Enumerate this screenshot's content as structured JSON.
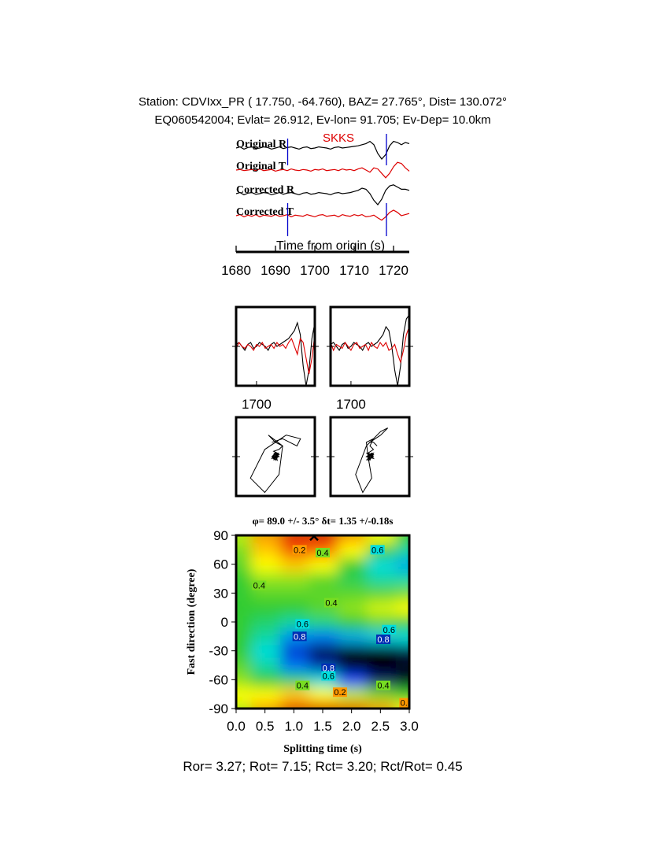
{
  "header": {
    "station": "Station: CDVIxx_PR (  17.750,  -64.760), BAZ=   27.765°, Dist=  130.072°",
    "event": "EQ060542004; Evlat=  26.912, Ev-lon=  91.705; Ev-Dep= 10.0km"
  },
  "chart_data": [
    {
      "type": "line",
      "phase": "SKKS",
      "phase_color": "#dd0000",
      "xlabel": "Time from origin (s)",
      "xlim": [
        1680,
        1724
      ],
      "xticks": [
        1680,
        1690,
        1700,
        1710,
        1720
      ],
      "window": [
        1693.1,
        1718.2
      ],
      "window_color": "#0000cc",
      "x": [
        1680,
        1681,
        1682,
        1683,
        1684,
        1685,
        1686,
        1687,
        1688,
        1689,
        1690,
        1691,
        1692,
        1693,
        1694,
        1695,
        1696,
        1697,
        1698,
        1699,
        1700,
        1701,
        1702,
        1703,
        1704,
        1705,
        1706,
        1707,
        1708,
        1709,
        1710,
        1711,
        1712,
        1713,
        1714,
        1715,
        1716,
        1717,
        1718,
        1719,
        1720,
        1721,
        1722,
        1723,
        1724
      ],
      "ylim": [
        -1,
        1
      ],
      "series": [
        {
          "name": "Original R",
          "color": "#000000",
          "values": [
            0,
            0.1,
            -0.1,
            0.05,
            0.1,
            -0.05,
            0,
            0.1,
            0.05,
            -0.1,
            0,
            0.1,
            -0.05,
            0.05,
            0.1,
            0,
            -0.1,
            0.05,
            0.1,
            -0.05,
            0,
            0.1,
            0.05,
            0,
            -0.1,
            0.05,
            0.1,
            0,
            0.05,
            0.1,
            0.15,
            0.2,
            0.3,
            0.4,
            0.6,
            0.3,
            -0.5,
            -1,
            -0.6,
            0.2,
            0.6,
            0.5,
            0.3,
            0.5,
            0.4
          ]
        },
        {
          "name": "Original T",
          "color": "#dd0000",
          "values": [
            0,
            0.05,
            -0.05,
            0,
            0.05,
            -0.05,
            0.1,
            -0.05,
            0,
            0.05,
            -0.1,
            0,
            0.05,
            -0.05,
            0.1,
            0,
            -0.05,
            0.05,
            0,
            -0.1,
            0.05,
            0,
            0.1,
            -0.05,
            0,
            0.05,
            -0.05,
            0.1,
            0,
            0.05,
            -0.05,
            0.1,
            0.2,
            0,
            -0.2,
            0.2,
            0.1,
            -0.3,
            -0.7,
            -0.3,
            0.3,
            0.7,
            0.6,
            0.2,
            -0.1
          ]
        },
        {
          "name": "Corrected R",
          "color": "#000000",
          "values": [
            0,
            0.1,
            -0.1,
            0.05,
            0.1,
            -0.05,
            0,
            0.1,
            0.05,
            -0.1,
            0,
            0.1,
            -0.05,
            0.05,
            0.1,
            0,
            -0.1,
            0.05,
            0.1,
            -0.05,
            0,
            0.1,
            0.05,
            0,
            -0.1,
            0.05,
            0.1,
            0,
            0.05,
            0.1,
            0.2,
            0.3,
            0.5,
            0.4,
            0,
            -0.6,
            -1,
            -0.5,
            0.3,
            0.7,
            0.8,
            0.6,
            0.4,
            0.4,
            0.3
          ]
        },
        {
          "name": "Corrected T",
          "color": "#dd0000",
          "values": [
            0,
            0.1,
            -0.1,
            0.05,
            -0.05,
            0.1,
            -0.1,
            0.05,
            0,
            -0.05,
            0.1,
            -0.05,
            0,
            0.1,
            -0.1,
            0.05,
            0,
            -0.05,
            0.1,
            0,
            -0.1,
            0.05,
            0.1,
            -0.05,
            0,
            0.05,
            -0.1,
            0.1,
            0,
            -0.05,
            0.1,
            0,
            0.1,
            -0.1,
            -0.05,
            0.05,
            -0.2,
            -0.4,
            -0.1,
            0.3,
            0.5,
            0.3,
            0,
            0.1,
            0.2
          ]
        }
      ]
    },
    {
      "type": "line",
      "xlim": [
        1693,
        1720
      ],
      "xticks": [
        1700
      ],
      "ylim": [
        -1,
        1
      ]
    },
    {
      "type": "scatter",
      "xlim": [
        -1.1,
        1.1
      ],
      "ylim": [
        -1.1,
        1.1
      ]
    },
    {
      "type": "heatmap",
      "title": "φ= 89.0 +/- 3.5° δt= 1.35 +/-0.18s",
      "xlabel": "Splitting time (s)",
      "ylabel": "Fast direction (degree)",
      "xlim": [
        0,
        3
      ],
      "ylim": [
        -90,
        90
      ],
      "xticks": [
        {
          "value": 0,
          "label": "0.0"
        },
        0.5,
        {
          "value": 1,
          "label": "1.0"
        },
        1.5,
        {
          "value": 2,
          "label": "2.0"
        },
        2.5,
        {
          "value": 3,
          "label": "3.0"
        }
      ],
      "yticks": [
        90,
        60,
        30,
        0,
        -30,
        -60,
        -90
      ],
      "grid_x": [
        0,
        0.5,
        1,
        1.5,
        2,
        2.5,
        3
      ],
      "grid_y": [
        90,
        75,
        60,
        45,
        30,
        15,
        0,
        -15,
        -30,
        -45,
        -60,
        -75,
        -90
      ],
      "z": [
        [
          0.35,
          0.2,
          0.05,
          0.02,
          0.2,
          0.3,
          0.45
        ],
        [
          0.4,
          0.25,
          0.12,
          0.15,
          0.3,
          0.45,
          0.55
        ],
        [
          0.42,
          0.3,
          0.25,
          0.3,
          0.45,
          0.6,
          0.65
        ],
        [
          0.45,
          0.38,
          0.38,
          0.42,
          0.48,
          0.55,
          0.55
        ],
        [
          0.45,
          0.42,
          0.42,
          0.42,
          0.42,
          0.42,
          0.4
        ],
        [
          0.45,
          0.45,
          0.45,
          0.42,
          0.38,
          0.33,
          0.3
        ],
        [
          0.45,
          0.5,
          0.55,
          0.52,
          0.45,
          0.42,
          0.45
        ],
        [
          0.45,
          0.55,
          0.68,
          0.7,
          0.65,
          0.62,
          0.6
        ],
        [
          0.45,
          0.6,
          0.78,
          0.88,
          0.93,
          0.92,
          0.88
        ],
        [
          0.42,
          0.55,
          0.7,
          0.8,
          0.9,
          0.92,
          0.9
        ],
        [
          0.38,
          0.45,
          0.5,
          0.6,
          0.75,
          0.85,
          0.9
        ],
        [
          0.3,
          0.3,
          0.25,
          0.3,
          0.35,
          0.4,
          0.45
        ],
        [
          0.35,
          0.2,
          0.05,
          0.02,
          0.1,
          0.2,
          0.3
        ]
      ],
      "colorscale": [
        [
          0,
          "#e00000"
        ],
        [
          0.2,
          "#ff9900"
        ],
        [
          0.3,
          "#ffff00"
        ],
        [
          0.45,
          "#33cc33"
        ],
        [
          0.6,
          "#00dddd"
        ],
        [
          0.75,
          "#0044ff"
        ],
        [
          0.92,
          "#000000"
        ]
      ],
      "contour_labels": [
        {
          "value": 0.2,
          "x": 1.1,
          "y": 75
        },
        {
          "value": 0.4,
          "x": 1.5,
          "y": 72
        },
        {
          "value": 0.6,
          "x": 2.45,
          "y": 75
        },
        {
          "value": 0.4,
          "x": 0.4,
          "y": 38
        },
        {
          "value": 0.4,
          "x": 1.65,
          "y": 20
        },
        {
          "value": 0.6,
          "x": 1.15,
          "y": -2
        },
        {
          "value": 0.8,
          "x": 1.1,
          "y": -15
        },
        {
          "value": 0.6,
          "x": 2.65,
          "y": -8
        },
        {
          "value": 0.8,
          "x": 2.55,
          "y": -18
        },
        {
          "value": 0.8,
          "x": 1.6,
          "y": -48
        },
        {
          "value": 0.6,
          "x": 1.6,
          "y": -56
        },
        {
          "value": 0.4,
          "x": 1.15,
          "y": -66
        },
        {
          "value": 0.2,
          "x": 1.8,
          "y": -73
        },
        {
          "value": 0.4,
          "x": 2.55,
          "y": -66
        },
        {
          "value": 0.2,
          "x": 2.95,
          "y": -84
        }
      ],
      "best_fit": {
        "dt": 1.35,
        "phi": 89.0
      }
    }
  ],
  "footer": "Ror= 3.27; Rot= 7.15; Rct= 3.20; Rct/Rot= 0.45"
}
